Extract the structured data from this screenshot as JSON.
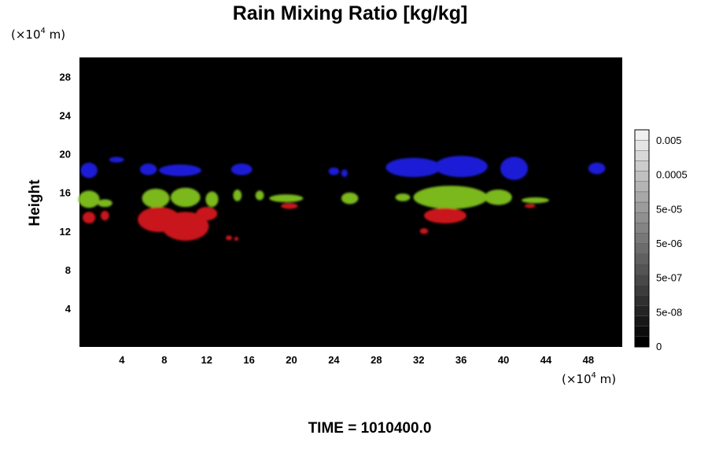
{
  "chart_data": {
    "type": "heatmap",
    "title": "Rain Mixing Ratio [kg/kg]",
    "ylabel": "Height",
    "x_unit": {
      "prefix": "(×10",
      "exp": "4",
      "suffix": " m)"
    },
    "y_unit": {
      "prefix": "(×10",
      "exp": "4",
      "suffix": " m)"
    },
    "xlim": [
      0,
      51.2
    ],
    "ylim": [
      0,
      30
    ],
    "x_ticks": [
      "4",
      "8",
      "12",
      "16",
      "20",
      "24",
      "28",
      "32",
      "36",
      "40",
      "44",
      "48"
    ],
    "y_ticks": [
      "4",
      "8",
      "12",
      "16",
      "20",
      "24",
      "28"
    ],
    "background_color": "#000000",
    "colorbar": {
      "labels": [
        "0",
        "5e-08",
        "5e-07",
        "5e-06",
        "5e-05",
        "0.0005",
        "0.005"
      ],
      "levels": 21,
      "dark_color": "#000000",
      "light_color": "#f0f0f0"
    },
    "layers": [
      {
        "name": "blue",
        "color": "#1a1ad6",
        "blobs": [
          {
            "x": 0.9,
            "y": 18.3,
            "rx": 0.8,
            "ry": 0.8
          },
          {
            "x": 3.5,
            "y": 19.4,
            "rx": 0.7,
            "ry": 0.3
          },
          {
            "x": 6.5,
            "y": 18.4,
            "rx": 0.8,
            "ry": 0.6
          },
          {
            "x": 9.5,
            "y": 18.3,
            "rx": 2.0,
            "ry": 0.6
          },
          {
            "x": 15.3,
            "y": 18.4,
            "rx": 1.0,
            "ry": 0.6
          },
          {
            "x": 24.0,
            "y": 18.2,
            "rx": 0.5,
            "ry": 0.4
          },
          {
            "x": 25.0,
            "y": 18.0,
            "rx": 0.3,
            "ry": 0.4
          },
          {
            "x": 31.5,
            "y": 18.6,
            "rx": 2.6,
            "ry": 1.0
          },
          {
            "x": 36.0,
            "y": 18.7,
            "rx": 2.5,
            "ry": 1.1
          },
          {
            "x": 41.0,
            "y": 18.5,
            "rx": 1.3,
            "ry": 1.2
          },
          {
            "x": 48.8,
            "y": 18.5,
            "rx": 0.8,
            "ry": 0.6
          }
        ]
      },
      {
        "name": "green",
        "color": "#7ab81e",
        "blobs": [
          {
            "x": 0.9,
            "y": 15.3,
            "rx": 1.0,
            "ry": 0.9
          },
          {
            "x": 2.4,
            "y": 14.9,
            "rx": 0.7,
            "ry": 0.4
          },
          {
            "x": 7.2,
            "y": 15.4,
            "rx": 1.3,
            "ry": 1.0
          },
          {
            "x": 10.0,
            "y": 15.5,
            "rx": 1.4,
            "ry": 1.0
          },
          {
            "x": 12.5,
            "y": 15.3,
            "rx": 0.6,
            "ry": 0.8
          },
          {
            "x": 14.9,
            "y": 15.7,
            "rx": 0.4,
            "ry": 0.6
          },
          {
            "x": 17.0,
            "y": 15.7,
            "rx": 0.4,
            "ry": 0.5
          },
          {
            "x": 19.5,
            "y": 15.4,
            "rx": 1.6,
            "ry": 0.4
          },
          {
            "x": 25.5,
            "y": 15.4,
            "rx": 0.8,
            "ry": 0.6
          },
          {
            "x": 30.5,
            "y": 15.5,
            "rx": 0.7,
            "ry": 0.4
          },
          {
            "x": 35.0,
            "y": 15.5,
            "rx": 3.5,
            "ry": 1.2
          },
          {
            "x": 39.5,
            "y": 15.5,
            "rx": 1.3,
            "ry": 0.8
          },
          {
            "x": 43.0,
            "y": 15.2,
            "rx": 1.3,
            "ry": 0.3
          }
        ]
      },
      {
        "name": "red",
        "color": "#c8161a",
        "blobs": [
          {
            "x": 0.9,
            "y": 13.4,
            "rx": 0.6,
            "ry": 0.6
          },
          {
            "x": 2.4,
            "y": 13.6,
            "rx": 0.4,
            "ry": 0.5
          },
          {
            "x": 7.5,
            "y": 13.2,
            "rx": 2.0,
            "ry": 1.3
          },
          {
            "x": 10.0,
            "y": 12.5,
            "rx": 2.2,
            "ry": 1.5
          },
          {
            "x": 12.0,
            "y": 13.8,
            "rx": 1.0,
            "ry": 0.7
          },
          {
            "x": 14.1,
            "y": 11.3,
            "rx": 0.3,
            "ry": 0.25
          },
          {
            "x": 14.8,
            "y": 11.2,
            "rx": 0.2,
            "ry": 0.2
          },
          {
            "x": 19.8,
            "y": 14.6,
            "rx": 0.8,
            "ry": 0.3
          },
          {
            "x": 34.5,
            "y": 13.6,
            "rx": 2.0,
            "ry": 0.8
          },
          {
            "x": 32.5,
            "y": 12.0,
            "rx": 0.4,
            "ry": 0.3
          },
          {
            "x": 42.5,
            "y": 14.6,
            "rx": 0.5,
            "ry": 0.2
          }
        ]
      }
    ]
  },
  "footer": {
    "time_label": "TIME = 1010400.0"
  }
}
